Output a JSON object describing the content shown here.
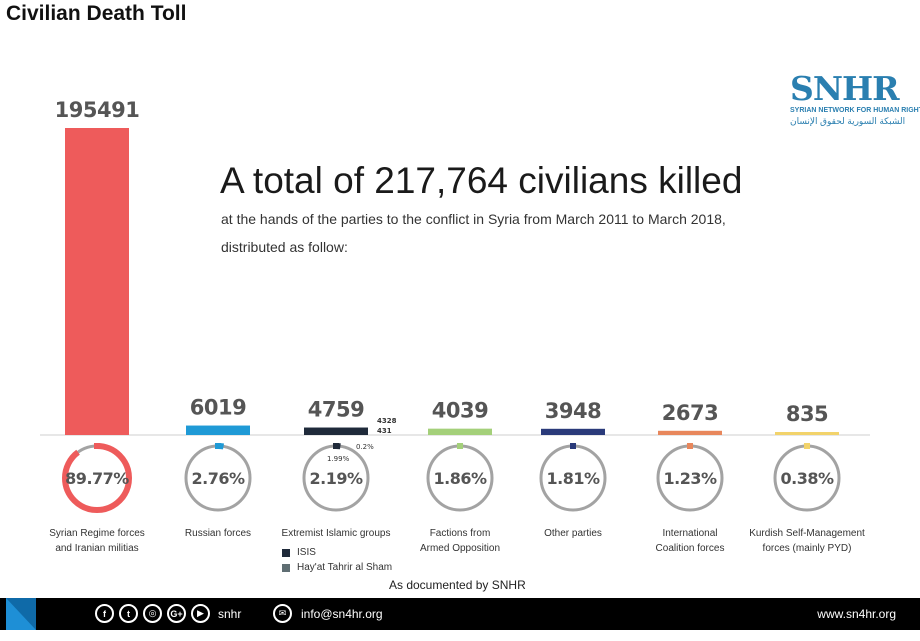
{
  "page_title": "Civilian Death Toll",
  "logo": {
    "name": "SNHR",
    "english": "SYRIAN NETWORK FOR HUMAN RIGHTS",
    "arabic": "الشبكة السورية لحقوق الإنسان"
  },
  "headline": "A total of 217,764 civilians killed",
  "subline1": "at the hands of the parties to the conflict in Syria from March 2011 to March 2018,",
  "subline2": "distributed as follow:",
  "documented": "As documented by SNHR",
  "legend": [
    {
      "label": "ISIS",
      "color": "#1f2a3a"
    },
    {
      "label": "Hay'at Tahrir al Sham",
      "color": "#5f6e73"
    }
  ],
  "footer": {
    "social_icons": [
      "facebook-icon",
      "twitter-icon",
      "instagram-icon",
      "google-plus-icon",
      "youtube-icon"
    ],
    "social_handle": "snhr",
    "email": "info@sn4hr.org",
    "website": "www.sn4hr.org"
  },
  "chart_data": {
    "type": "bar",
    "ylim": [
      0,
      195491
    ],
    "categories": [
      [
        "Syrian Regime forces",
        "and Iranian militias"
      ],
      [
        "Russian forces"
      ],
      [
        "Extremist Islamic groups"
      ],
      [
        "Factions from",
        "Armed Opposition"
      ],
      [
        "Other parties"
      ],
      [
        "International",
        "Coalition forces"
      ],
      [
        "Kurdish Self-Management",
        "forces (mainly PYD)"
      ]
    ],
    "values": [
      195491,
      6019,
      4759,
      4039,
      3948,
      2673,
      835
    ],
    "value_labels": [
      "195491",
      "6019",
      "4759",
      "4039",
      "3948",
      "2673",
      "835"
    ],
    "percents": [
      89.77,
      2.76,
      2.19,
      1.86,
      1.81,
      1.23,
      0.38
    ],
    "percent_labels": [
      "89.77%",
      "2.76%",
      "2.19%",
      "1.86%",
      "1.81%",
      "1.23%",
      "0.38%"
    ],
    "colors": [
      "#ee5b5b",
      "#1f9ad6",
      "#1f2a3a",
      "#a4d07a",
      "#2a3a7a",
      "#e8875c",
      "#f2d36b"
    ],
    "extremist_breakdown": [
      {
        "name": "ISIS",
        "value": 4328,
        "value_label": "4328",
        "percent_label": "1.99%",
        "color": "#1f2a3a"
      },
      {
        "name": "Hay'at Tahrir al Sham",
        "value": 431,
        "value_label": "431",
        "percent_label": "0.2%",
        "color": "#5f6e73"
      }
    ]
  }
}
